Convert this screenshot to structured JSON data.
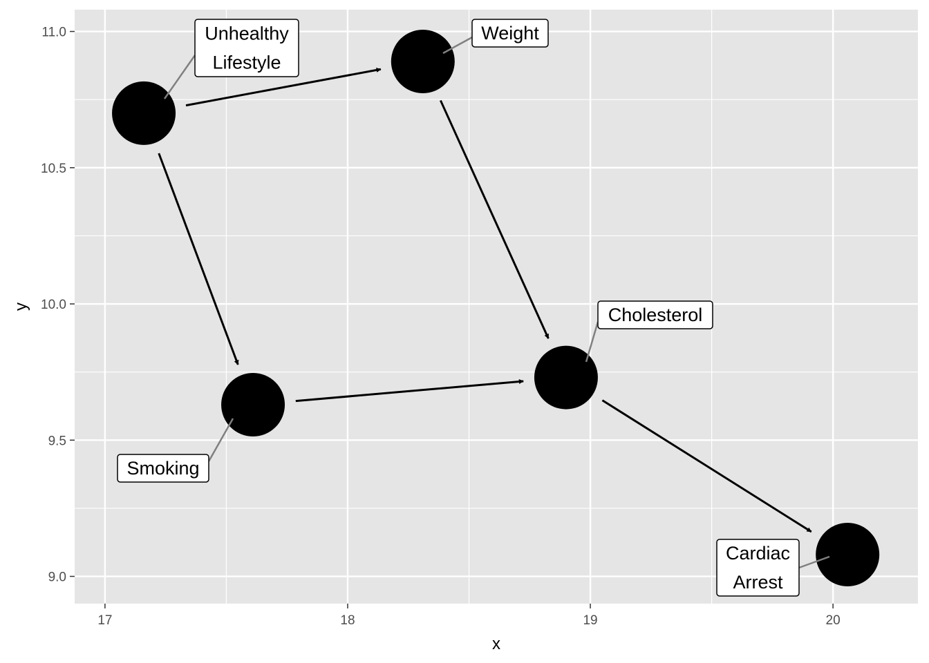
{
  "chart_data": {
    "type": "scatter",
    "subtype": "dag",
    "title": "",
    "xlabel": "x",
    "ylabel": "y",
    "xlim": [
      16.875,
      20.35
    ],
    "ylim": [
      8.9,
      11.08
    ],
    "x_ticks": [
      "17",
      "18",
      "19",
      "20"
    ],
    "y_ticks": [
      "9.0",
      "9.5",
      "10.0",
      "10.5",
      "11.0"
    ],
    "grid": true,
    "background": "#e5e5e5",
    "grid_color": "#ffffff",
    "node_color": "#000000",
    "nodes": [
      {
        "id": "unhealthy-lifestyle",
        "label": [
          "Unhealthy",
          "Lifestyle"
        ],
        "x": 17.16,
        "y": 10.7
      },
      {
        "id": "weight",
        "label": [
          "Weight"
        ],
        "x": 18.31,
        "y": 10.89
      },
      {
        "id": "smoking",
        "label": [
          "Smoking"
        ],
        "x": 17.61,
        "y": 9.63
      },
      {
        "id": "cholesterol",
        "label": [
          "Cholesterol"
        ],
        "x": 18.9,
        "y": 9.73
      },
      {
        "id": "cardiac-arrest",
        "label": [
          "Cardiac",
          "Arrest"
        ],
        "x": 20.06,
        "y": 9.08
      }
    ],
    "edges": [
      {
        "from": "unhealthy-lifestyle",
        "to": "weight"
      },
      {
        "from": "unhealthy-lifestyle",
        "to": "smoking"
      },
      {
        "from": "weight",
        "to": "cholesterol"
      },
      {
        "from": "smoking",
        "to": "cholesterol"
      },
      {
        "from": "cholesterol",
        "to": "cardiac-arrest"
      }
    ]
  }
}
